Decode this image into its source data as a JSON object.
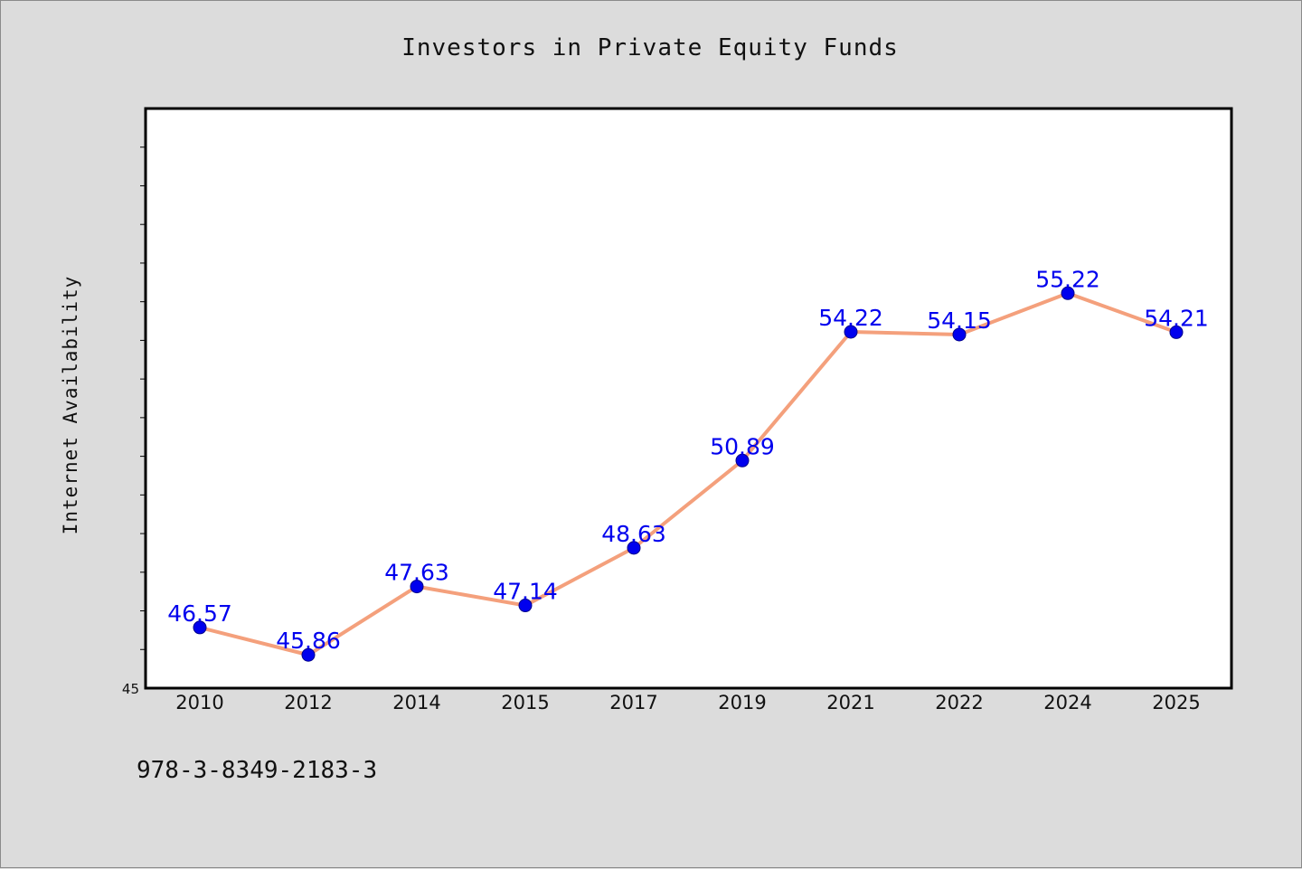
{
  "chart_data": {
    "type": "line",
    "title": "Investors in Private Equity Funds",
    "xlabel": "",
    "ylabel": "Internet Availability",
    "categories": [
      "2010",
      "2012",
      "2014",
      "2015",
      "2017",
      "2019",
      "2021",
      "2022",
      "2024",
      "2025"
    ],
    "series": [
      {
        "values": [
          46.57,
          45.86,
          47.63,
          47.14,
          48.63,
          50.89,
          54.22,
          54.15,
          55.22,
          54.21
        ],
        "data_labels": [
          "46.57",
          "45.86",
          "47.63",
          "47.14",
          "48.63",
          "50.89",
          "54.22",
          "54.15",
          "55.22",
          "54.21"
        ]
      }
    ],
    "ylim": [
      45,
      60
    ],
    "ytick_labels": [
      "45"
    ],
    "grid": false,
    "legend": "none",
    "colors": {
      "line": "#f4a07c",
      "marker": "#0000ee",
      "data_label": "#0000ee",
      "background": "#dcdcdc",
      "plot_background": "#ffffff"
    }
  },
  "footer": {
    "code": "978-3-8349-2183-3"
  }
}
